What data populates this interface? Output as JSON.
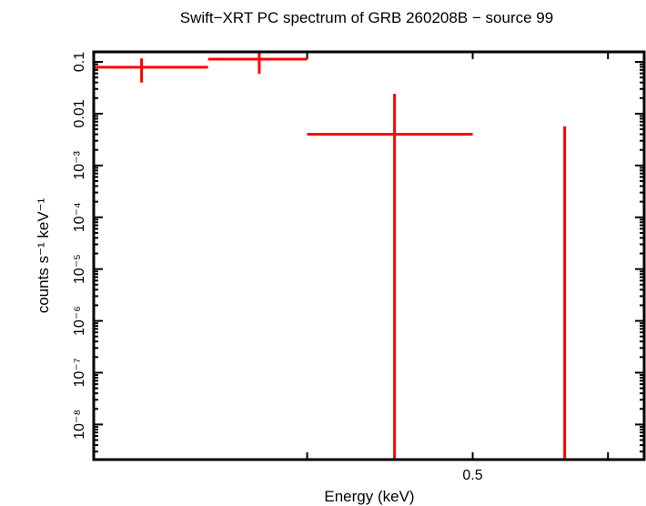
{
  "chart_data": {
    "type": "scatter",
    "title": "Swift−XRT PC spectrum of GRB 260208B − source 99",
    "xlabel": "Energy (keV)",
    "ylabel": "counts s⁻¹ keV⁻¹",
    "x_scale": "log",
    "y_scale": "log",
    "xlim": [
      0.3,
      0.63
    ],
    "ylim": [
      2.1e-09,
      0.156
    ],
    "x_ticks": [
      {
        "value": 0.4,
        "label": ""
      },
      {
        "value": 0.5,
        "label": "0.5"
      },
      {
        "value": 0.6,
        "label": ""
      }
    ],
    "y_ticks": [
      {
        "value": 0.1,
        "label": "0.1"
      },
      {
        "value": 0.01,
        "label": "0.01"
      },
      {
        "value": 0.001,
        "label": "10⁻³"
      },
      {
        "value": 0.0001,
        "label": "10⁻⁴"
      },
      {
        "value": 1e-05,
        "label": "10⁻⁵"
      },
      {
        "value": 1e-06,
        "label": "10⁻⁶"
      },
      {
        "value": 1e-07,
        "label": "10⁻⁷"
      },
      {
        "value": 1e-08,
        "label": "10⁻⁸"
      }
    ],
    "grid": false,
    "series": [
      {
        "color": "#ff0000",
        "points": [
          {
            "x": 0.32,
            "x_low": 0.3,
            "x_high": 0.35,
            "y": 0.079,
            "y_low": 0.04,
            "y_high": 0.117
          },
          {
            "x": 0.375,
            "x_low": 0.35,
            "x_high": 0.4,
            "y": 0.113,
            "y_low": 0.059,
            "y_high": 0.156
          },
          {
            "x": 0.45,
            "x_low": 0.4,
            "x_high": 0.5,
            "y": 0.004,
            "y_low": 2.1e-09,
            "y_high": 0.0243
          },
          {
            "x": 0.566,
            "x_low": 0.566,
            "x_high": 0.566,
            "y": 2.1e-09,
            "y_low": 2.1e-09,
            "y_high": 0.0057
          }
        ]
      }
    ]
  }
}
